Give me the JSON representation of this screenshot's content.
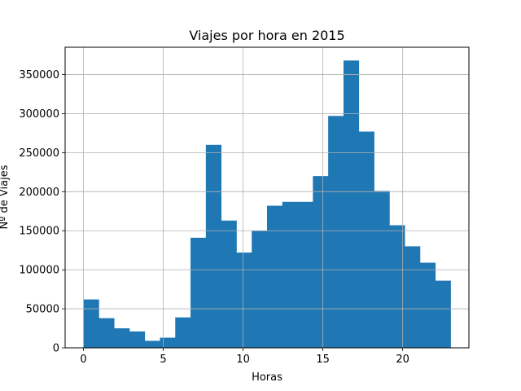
{
  "chart_data": {
    "type": "bar",
    "title": "Viajes por hora en 2015",
    "xlabel": "Horas",
    "ylabel": "Nº de Viajes",
    "xlim": [
      -1.15,
      24.15
    ],
    "ylim": [
      0,
      385000
    ],
    "grid": true,
    "bar_color": "#1f77b4",
    "bins": [
      {
        "start": 0.0,
        "end": 0.958,
        "value": 62000
      },
      {
        "start": 0.958,
        "end": 1.917,
        "value": 38000
      },
      {
        "start": 1.917,
        "end": 2.875,
        "value": 25000
      },
      {
        "start": 2.875,
        "end": 3.833,
        "value": 21000
      },
      {
        "start": 3.833,
        "end": 4.792,
        "value": 9000
      },
      {
        "start": 4.792,
        "end": 5.75,
        "value": 13000
      },
      {
        "start": 5.75,
        "end": 6.708,
        "value": 39000
      },
      {
        "start": 6.708,
        "end": 7.667,
        "value": 141000
      },
      {
        "start": 7.667,
        "end": 8.625,
        "value": 260000
      },
      {
        "start": 8.625,
        "end": 9.583,
        "value": 163000
      },
      {
        "start": 9.583,
        "end": 10.542,
        "value": 122000
      },
      {
        "start": 10.542,
        "end": 11.5,
        "value": 150000
      },
      {
        "start": 11.5,
        "end": 12.458,
        "value": 182000
      },
      {
        "start": 12.458,
        "end": 13.417,
        "value": 187000
      },
      {
        "start": 13.417,
        "end": 14.375,
        "value": 187000
      },
      {
        "start": 14.375,
        "end": 15.333,
        "value": 220000
      },
      {
        "start": 15.333,
        "end": 16.292,
        "value": 297000
      },
      {
        "start": 16.292,
        "end": 17.25,
        "value": 368000
      },
      {
        "start": 17.25,
        "end": 18.208,
        "value": 277000
      },
      {
        "start": 18.208,
        "end": 19.167,
        "value": 201000
      },
      {
        "start": 19.167,
        "end": 20.125,
        "value": 157000
      },
      {
        "start": 20.125,
        "end": 21.083,
        "value": 130000
      },
      {
        "start": 21.083,
        "end": 22.042,
        "value": 109000
      },
      {
        "start": 22.042,
        "end": 23.0,
        "value": 86000
      }
    ],
    "x_ticks": [
      0,
      5,
      10,
      15,
      20
    ],
    "x_tick_labels": [
      "0",
      "5",
      "10",
      "15",
      "20"
    ],
    "y_ticks": [
      0,
      50000,
      100000,
      150000,
      200000,
      250000,
      300000,
      350000
    ],
    "y_tick_labels": [
      "0",
      "50000",
      "100000",
      "150000",
      "200000",
      "250000",
      "300000",
      "350000"
    ]
  }
}
